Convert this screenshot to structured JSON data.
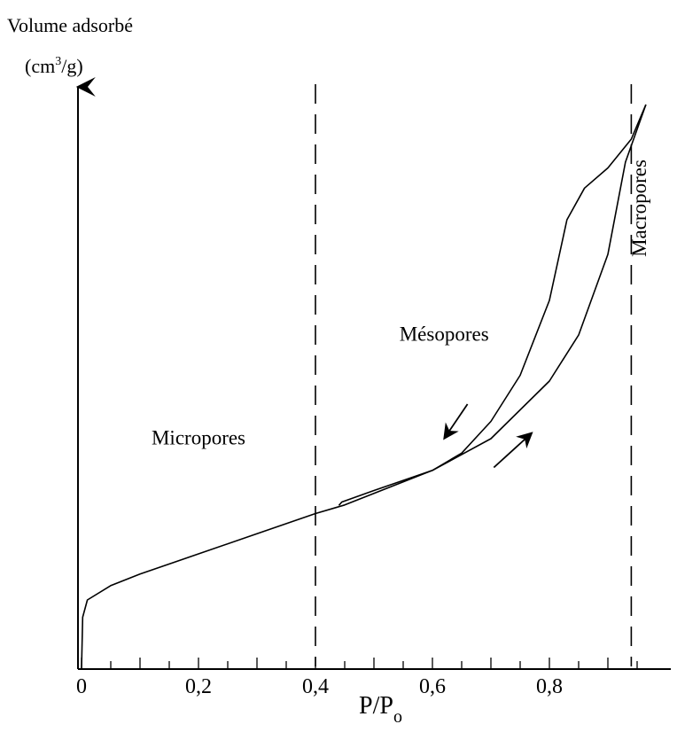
{
  "chart_data": {
    "type": "line",
    "ylabel": "Volume adsorbé",
    "yunit_prefix": "(cm",
    "yunit_sup": "3",
    "yunit_suffix": "/g)",
    "xlabel_main": "P/P",
    "xlabel_sub": "o",
    "xlim": [
      0,
      1.0
    ],
    "ticks": [
      {
        "value": 0.0,
        "label": "0"
      },
      {
        "value": 0.2,
        "label": "0,2"
      },
      {
        "value": 0.4,
        "label": "0,4"
      },
      {
        "value": 0.6,
        "label": "0,6"
      },
      {
        "value": 0.8,
        "label": "0,8"
      }
    ],
    "ylim": [
      0,
      100
    ],
    "boundaries": [
      0.4,
      0.94
    ],
    "regions": [
      {
        "name": "micropores",
        "label": "Micropores",
        "x": 0.2,
        "y": 39
      },
      {
        "name": "mesopores",
        "label": "Mésopores",
        "x": 0.62,
        "y": 57
      },
      {
        "name": "macropores",
        "label": "Macropores",
        "x": 0.965,
        "y": 80
      }
    ],
    "series": [
      {
        "key": "adsorption",
        "points": [
          [
            0,
            0
          ],
          [
            0.002,
            9
          ],
          [
            0.01,
            12
          ],
          [
            0.05,
            14.5
          ],
          [
            0.1,
            16.5
          ],
          [
            0.2,
            20
          ],
          [
            0.3,
            23.5
          ],
          [
            0.4,
            27
          ],
          [
            0.45,
            28.5
          ],
          [
            0.5,
            30.5
          ],
          [
            0.6,
            34.5
          ],
          [
            0.7,
            40
          ],
          [
            0.8,
            50
          ],
          [
            0.85,
            58
          ],
          [
            0.9,
            72
          ],
          [
            0.93,
            88
          ],
          [
            0.965,
            98
          ]
        ]
      },
      {
        "key": "desorption",
        "points": [
          [
            0.965,
            98
          ],
          [
            0.94,
            92
          ],
          [
            0.9,
            87
          ],
          [
            0.86,
            83.5
          ],
          [
            0.83,
            78
          ],
          [
            0.8,
            64
          ],
          [
            0.75,
            51
          ],
          [
            0.7,
            43
          ],
          [
            0.65,
            37.5
          ],
          [
            0.6,
            34.5
          ],
          [
            0.5,
            31
          ],
          [
            0.445,
            29
          ],
          [
            0.44,
            28.4
          ]
        ]
      }
    ],
    "arrows": [
      {
        "key": "desorption-arrow",
        "from": [
          0.66,
          46
        ],
        "to": [
          0.62,
          40
        ]
      },
      {
        "key": "adsorption-arrow",
        "from": [
          0.705,
          35
        ],
        "to": [
          0.77,
          41
        ]
      }
    ],
    "grid": false
  }
}
